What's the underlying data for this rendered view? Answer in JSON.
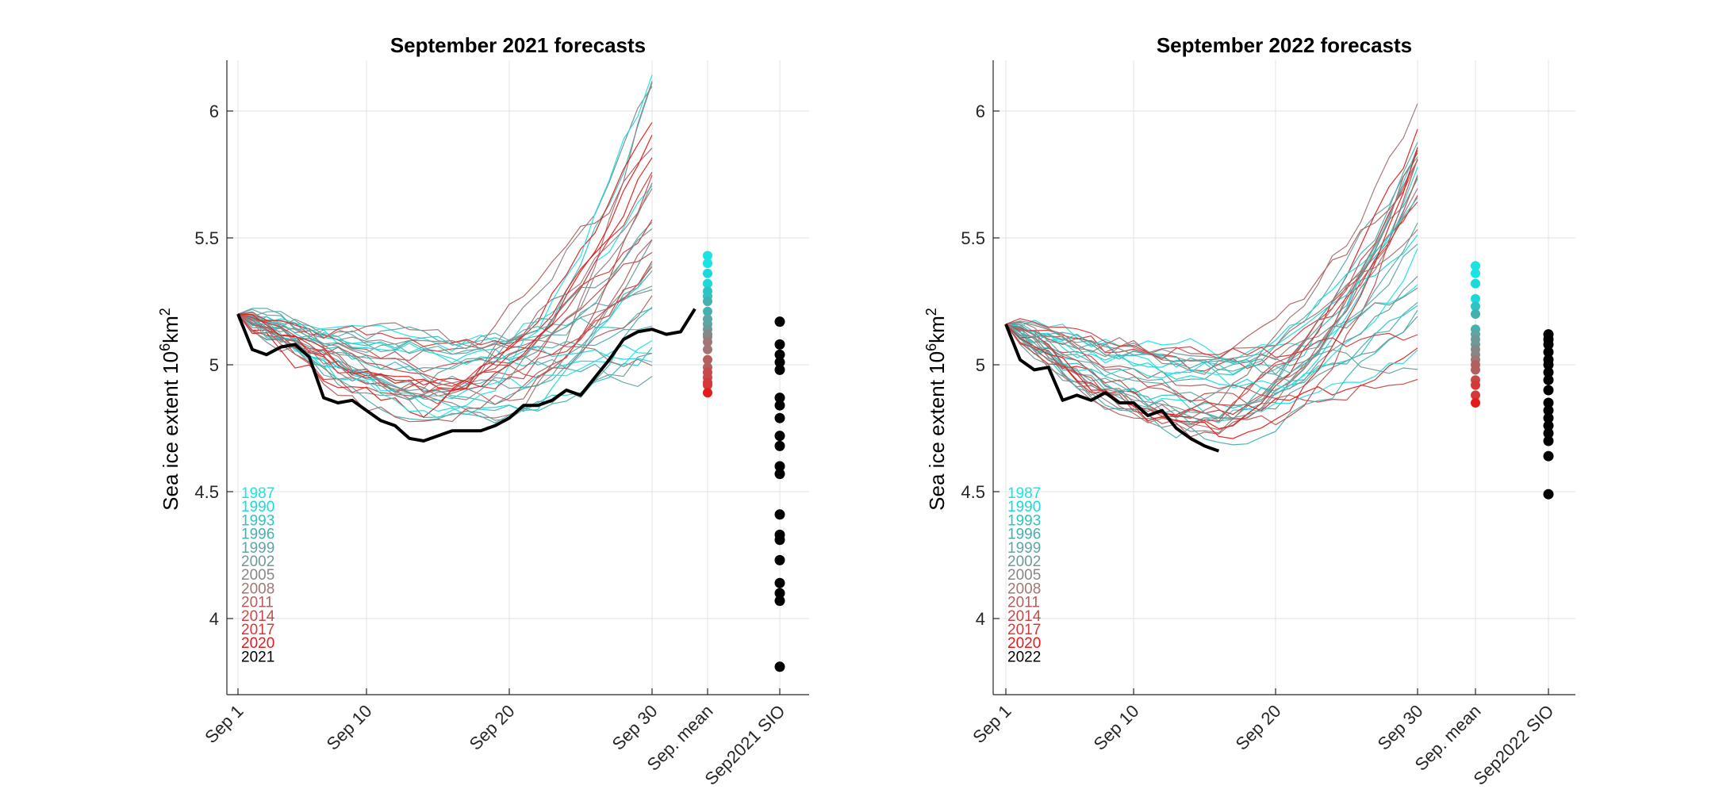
{
  "chart_data": [
    {
      "type": "line",
      "title": "September 2021 forecasts",
      "ylabel_main": "Sea ice extent 10",
      "ylabel_sup": "6",
      "ylabel_unit": "km",
      "ylabel_sup2": "2",
      "ylim": [
        3.7,
        6.2
      ],
      "yticks": [
        "4",
        "4.5",
        "5",
        "5.5",
        "6"
      ],
      "xticks": [
        "Sep 1",
        "Sep 10",
        "Sep 20",
        "Sep 30",
        "Sep. mean",
        "Sep2021 SIO"
      ],
      "legend": [
        "1987",
        "1990",
        "1993",
        "1996",
        "1999",
        "2002",
        "2005",
        "2008",
        "2011",
        "2014",
        "2017",
        "2020",
        "2021"
      ],
      "observed_year": "2021",
      "observed": [
        5.2,
        5.06,
        5.04,
        5.07,
        5.08,
        5.03,
        4.87,
        4.85,
        4.86,
        4.82,
        4.78,
        4.76,
        4.71,
        4.7,
        4.72,
        4.74,
        4.74,
        4.74,
        4.76,
        4.79,
        4.84,
        4.84,
        4.86,
        4.9,
        4.88,
        4.95,
        5.02,
        5.1,
        5.13,
        5.14,
        5.12,
        5.13,
        5.22
      ],
      "forecast_start": 5.2,
      "forecast_low": 4.65,
      "forecast_high": 6.15,
      "sep_mean_points": [
        5.43,
        5.4,
        5.36,
        5.32,
        5.29,
        5.27,
        5.25,
        5.21,
        5.18,
        5.16,
        5.14,
        5.12,
        5.11,
        5.09,
        5.06,
        5.02,
        4.99,
        4.97,
        4.95,
        4.93,
        4.92,
        4.89
      ],
      "sio_points": [
        5.17,
        5.08,
        5.04,
        5.01,
        4.98,
        4.87,
        4.84,
        4.79,
        4.72,
        4.68,
        4.6,
        4.57,
        4.41,
        4.33,
        4.31,
        4.23,
        4.14,
        4.1,
        4.07,
        3.81
      ]
    },
    {
      "type": "line",
      "title": "September 2022 forecasts",
      "ylabel_main": "Sea ice extent 10",
      "ylabel_sup": "6",
      "ylabel_unit": "km",
      "ylabel_sup2": "2",
      "ylim": [
        3.7,
        6.2
      ],
      "yticks": [
        "4",
        "4.5",
        "5",
        "5.5",
        "6"
      ],
      "xticks": [
        "Sep 1",
        "Sep 10",
        "Sep 20",
        "Sep 30",
        "Sep. mean",
        "Sep2022 SIO"
      ],
      "legend": [
        "1987",
        "1990",
        "1993",
        "1996",
        "1999",
        "2002",
        "2005",
        "2008",
        "2011",
        "2014",
        "2017",
        "2020",
        "2022"
      ],
      "observed_year": "2022",
      "observed": [
        5.16,
        5.02,
        4.98,
        4.99,
        4.86,
        4.88,
        4.86,
        4.89,
        4.85,
        4.85,
        4.8,
        4.82,
        4.75,
        4.71,
        4.68,
        4.66
      ],
      "forecast_start": 5.16,
      "forecast_low": 4.6,
      "forecast_high": 6.12,
      "sep_mean_points": [
        5.39,
        5.36,
        5.32,
        5.26,
        5.23,
        5.2,
        5.14,
        5.12,
        5.1,
        5.08,
        5.06,
        5.04,
        5.02,
        5.0,
        4.98,
        4.94,
        4.92,
        4.88,
        4.85
      ],
      "sio_points": [
        5.12,
        5.1,
        5.08,
        5.05,
        5.02,
        5.0,
        4.97,
        4.94,
        4.9,
        4.85,
        4.82,
        4.79,
        4.76,
        4.73,
        4.7,
        4.64,
        4.49
      ]
    }
  ],
  "colors": {
    "legend": [
      "#1be3e3",
      "#1bd9d9",
      "#2cc4c4",
      "#44b0b0",
      "#5ea6a6",
      "#6f9898",
      "#878787",
      "#a07676",
      "#b25f5f",
      "#c64a4a",
      "#d43838",
      "#e31b1b",
      "#000000"
    ],
    "observed": "#000000",
    "sio": "#000000"
  }
}
